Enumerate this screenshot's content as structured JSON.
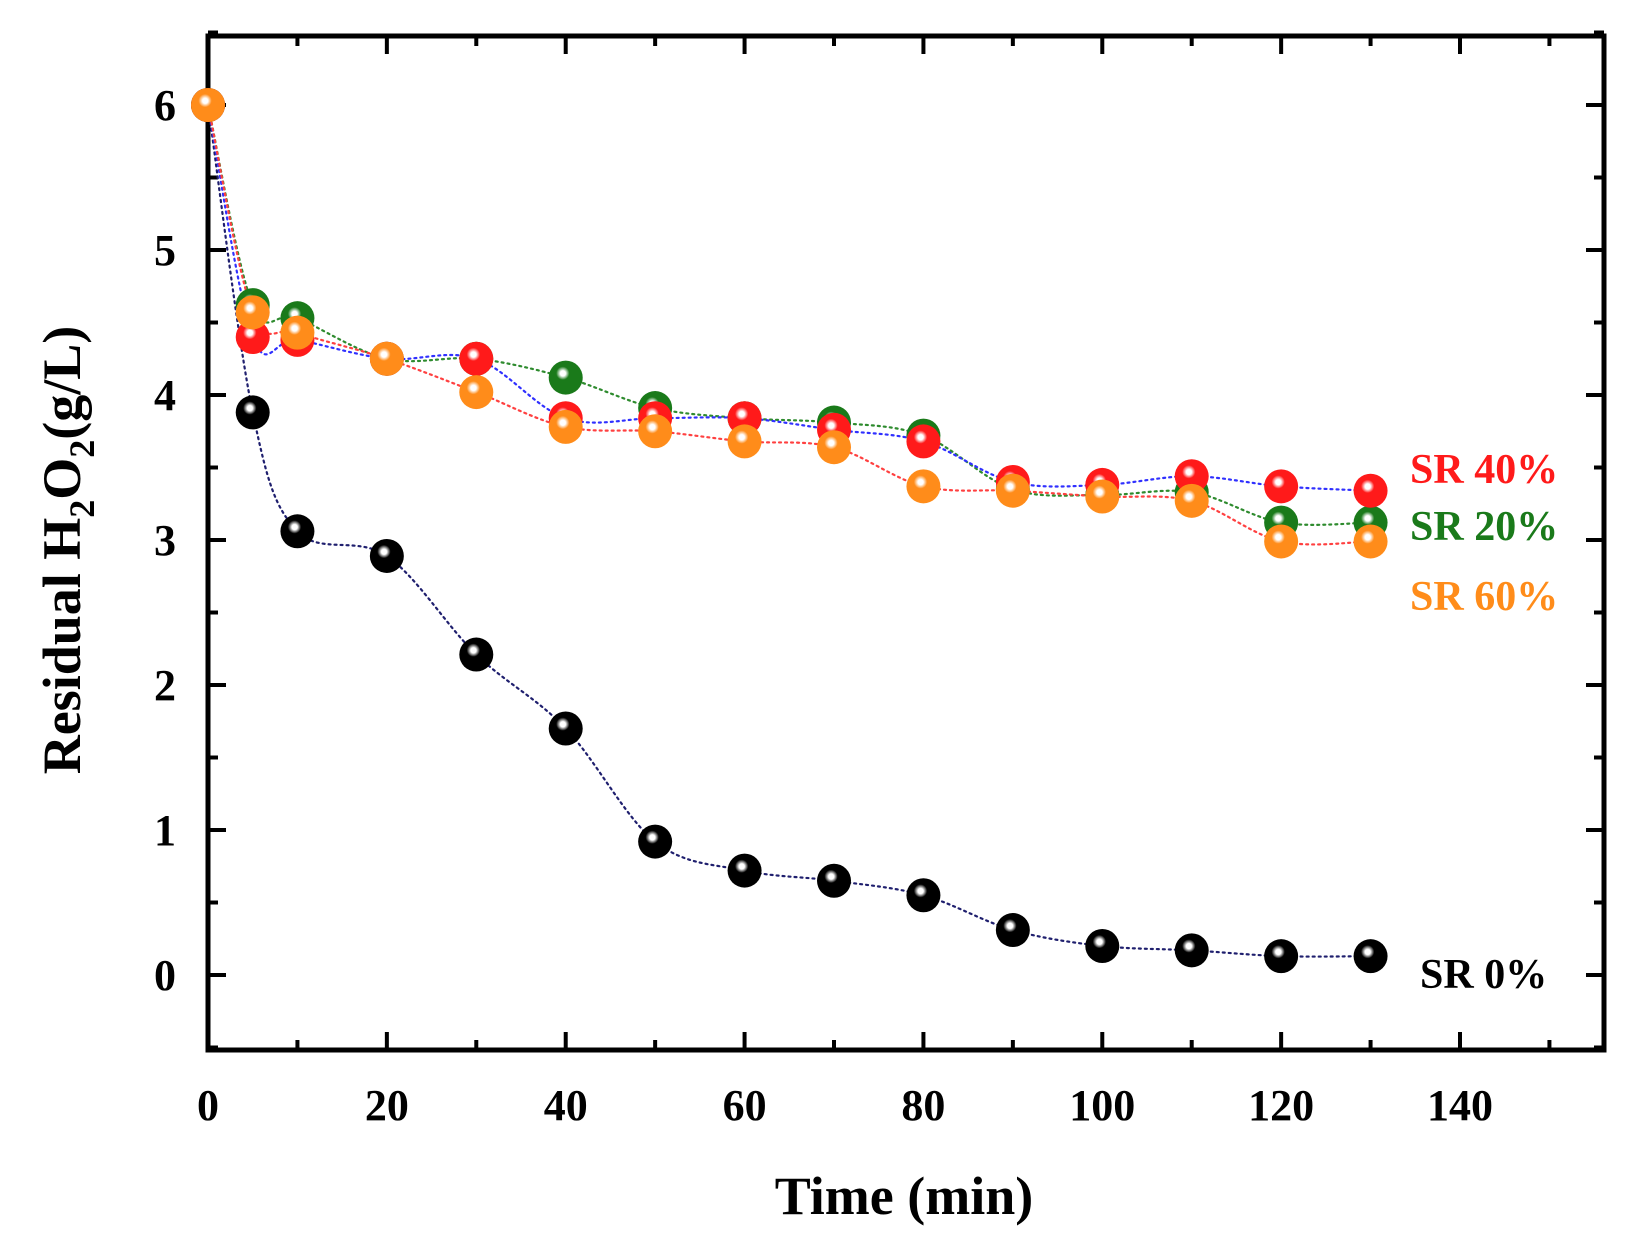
{
  "chart_data": {
    "type": "scatter",
    "xlabel": "Time (min)",
    "ylabel": {
      "prefix": "Residual H",
      "sub1": "2",
      "middle": "O",
      "sub2": "2",
      "suffix": "(g/L)"
    },
    "xlim": [
      0,
      155
    ],
    "ylim": [
      -0.5,
      6.5
    ],
    "x_ticks": [
      0,
      20,
      40,
      60,
      80,
      100,
      120,
      140
    ],
    "y_ticks": [
      0,
      1,
      2,
      3,
      4,
      5,
      6
    ],
    "x_tick_labels": [
      "0",
      "20",
      "40",
      "60",
      "80",
      "100",
      "120",
      "140"
    ],
    "y_tick_labels": [
      "0",
      "1",
      "2",
      "3",
      "4",
      "5",
      "6"
    ],
    "x": [
      0,
      5,
      10,
      20,
      30,
      40,
      50,
      60,
      70,
      80,
      90,
      100,
      110,
      120,
      130
    ],
    "series": [
      {
        "name": "SR 0%",
        "color": "#000000",
        "line_color": "#1f1f6e",
        "values": [
          6.0,
          3.88,
          3.06,
          2.89,
          2.21,
          1.7,
          0.92,
          0.72,
          0.65,
          0.55,
          0.31,
          0.2,
          0.17,
          0.13,
          0.13
        ]
      },
      {
        "name": "SR 20%",
        "color": "#1a7a1a",
        "line_color": "#2e8b2e",
        "values": [
          6.0,
          4.62,
          4.53,
          4.25,
          4.25,
          4.12,
          3.91,
          3.84,
          3.81,
          3.72,
          3.35,
          3.31,
          3.33,
          3.12,
          3.12
        ]
      },
      {
        "name": "SR 40%",
        "color": "#ff1a1a",
        "line_color": "#3030ff",
        "values": [
          6.0,
          4.4,
          4.38,
          4.25,
          4.25,
          3.84,
          3.84,
          3.84,
          3.76,
          3.68,
          3.4,
          3.38,
          3.44,
          3.37,
          3.34
        ]
      },
      {
        "name": "SR 60%",
        "color": "#ff8c1a",
        "line_color": "#ff4040",
        "values": [
          6.0,
          4.57,
          4.43,
          4.25,
          4.02,
          3.78,
          3.75,
          3.68,
          3.64,
          3.37,
          3.34,
          3.3,
          3.27,
          2.99,
          2.99
        ]
      }
    ],
    "annotations": [
      {
        "text": "SR 40%",
        "color": "#ff1a1a"
      },
      {
        "text": "SR 20%",
        "color": "#1a7a1a"
      },
      {
        "text": "SR 60%",
        "color": "#ff8c1a"
      },
      {
        "text": "SR 0%",
        "color": "#000000"
      }
    ]
  }
}
